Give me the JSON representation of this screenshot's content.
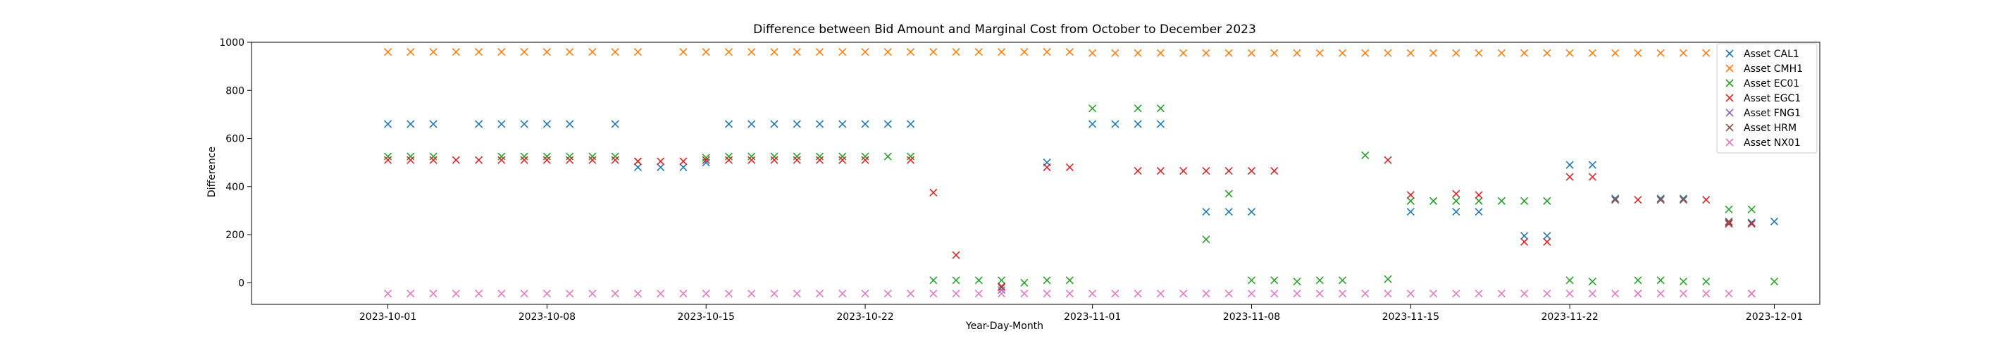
{
  "chart_data": {
    "type": "scatter",
    "title": "Difference between Bid Amount and Marginal Cost from October to December 2023",
    "xlabel": "Year-Day-Month",
    "ylabel": "Difference",
    "x_range": [
      "2023-09-25",
      "2023-12-03"
    ],
    "ylim": [
      -90,
      1000
    ],
    "y_ticks": [
      0,
      200,
      400,
      600,
      800,
      1000
    ],
    "x_ticks": [
      "2023-10-01",
      "2023-10-08",
      "2023-10-15",
      "2023-10-22",
      "2023-11-01",
      "2023-11-08",
      "2023-11-15",
      "2023-11-22",
      "2023-12-01"
    ],
    "grid": false,
    "legend_position": "top-right",
    "marker": "x",
    "series": [
      {
        "name": "Asset CAL1",
        "color": "#1f77b4",
        "points": [
          [
            "2023-10-01",
            660
          ],
          [
            "2023-10-02",
            660
          ],
          [
            "2023-10-03",
            660
          ],
          [
            "2023-10-05",
            660
          ],
          [
            "2023-10-06",
            660
          ],
          [
            "2023-10-07",
            660
          ],
          [
            "2023-10-08",
            660
          ],
          [
            "2023-10-09",
            660
          ],
          [
            "2023-10-11",
            660
          ],
          [
            "2023-10-12",
            480
          ],
          [
            "2023-10-13",
            480
          ],
          [
            "2023-10-14",
            480
          ],
          [
            "2023-10-15",
            500
          ],
          [
            "2023-10-16",
            660
          ],
          [
            "2023-10-17",
            660
          ],
          [
            "2023-10-18",
            660
          ],
          [
            "2023-10-19",
            660
          ],
          [
            "2023-10-20",
            660
          ],
          [
            "2023-10-21",
            660
          ],
          [
            "2023-10-22",
            660
          ],
          [
            "2023-10-23",
            660
          ],
          [
            "2023-10-24",
            660
          ],
          [
            "2023-10-30",
            500
          ],
          [
            "2023-11-01",
            660
          ],
          [
            "2023-11-02",
            660
          ],
          [
            "2023-11-03",
            660
          ],
          [
            "2023-11-04",
            660
          ],
          [
            "2023-11-06",
            295
          ],
          [
            "2023-11-07",
            295
          ],
          [
            "2023-11-08",
            295
          ],
          [
            "2023-11-15",
            295
          ],
          [
            "2023-11-17",
            295
          ],
          [
            "2023-11-18",
            295
          ],
          [
            "2023-11-20",
            195
          ],
          [
            "2023-11-21",
            195
          ],
          [
            "2023-11-22",
            490
          ],
          [
            "2023-11-23",
            490
          ],
          [
            "2023-11-24",
            350
          ],
          [
            "2023-11-26",
            350
          ],
          [
            "2023-11-27",
            350
          ],
          [
            "2023-11-29",
            250
          ],
          [
            "2023-11-30",
            250
          ],
          [
            "2023-12-01",
            255
          ]
        ]
      },
      {
        "name": "Asset CMH1",
        "color": "#ff7f0e",
        "points": [
          [
            "2023-10-01",
            960
          ],
          [
            "2023-10-02",
            960
          ],
          [
            "2023-10-03",
            960
          ],
          [
            "2023-10-04",
            960
          ],
          [
            "2023-10-05",
            960
          ],
          [
            "2023-10-06",
            960
          ],
          [
            "2023-10-07",
            960
          ],
          [
            "2023-10-08",
            960
          ],
          [
            "2023-10-09",
            960
          ],
          [
            "2023-10-10",
            960
          ],
          [
            "2023-10-11",
            960
          ],
          [
            "2023-10-12",
            960
          ],
          [
            "2023-10-14",
            960
          ],
          [
            "2023-10-15",
            960
          ],
          [
            "2023-10-16",
            960
          ],
          [
            "2023-10-17",
            960
          ],
          [
            "2023-10-18",
            960
          ],
          [
            "2023-10-19",
            960
          ],
          [
            "2023-10-20",
            960
          ],
          [
            "2023-10-21",
            960
          ],
          [
            "2023-10-22",
            960
          ],
          [
            "2023-10-23",
            960
          ],
          [
            "2023-10-24",
            960
          ],
          [
            "2023-10-25",
            960
          ],
          [
            "2023-10-26",
            960
          ],
          [
            "2023-10-27",
            960
          ],
          [
            "2023-10-28",
            960
          ],
          [
            "2023-10-29",
            960
          ],
          [
            "2023-10-30",
            960
          ],
          [
            "2023-10-31",
            960
          ],
          [
            "2023-11-01",
            955
          ],
          [
            "2023-11-02",
            955
          ],
          [
            "2023-11-03",
            955
          ],
          [
            "2023-11-04",
            955
          ],
          [
            "2023-11-05",
            955
          ],
          [
            "2023-11-06",
            955
          ],
          [
            "2023-11-07",
            955
          ],
          [
            "2023-11-08",
            955
          ],
          [
            "2023-11-09",
            955
          ],
          [
            "2023-11-10",
            955
          ],
          [
            "2023-11-11",
            955
          ],
          [
            "2023-11-12",
            955
          ],
          [
            "2023-11-13",
            955
          ],
          [
            "2023-11-14",
            955
          ],
          [
            "2023-11-15",
            955
          ],
          [
            "2023-11-16",
            955
          ],
          [
            "2023-11-17",
            955
          ],
          [
            "2023-11-18",
            955
          ],
          [
            "2023-11-19",
            955
          ],
          [
            "2023-11-20",
            955
          ],
          [
            "2023-11-21",
            955
          ],
          [
            "2023-11-22",
            955
          ],
          [
            "2023-11-23",
            955
          ],
          [
            "2023-11-24",
            955
          ],
          [
            "2023-11-25",
            955
          ],
          [
            "2023-11-26",
            955
          ],
          [
            "2023-11-27",
            955
          ],
          [
            "2023-11-28",
            955
          ],
          [
            "2023-11-29",
            955
          ]
        ]
      },
      {
        "name": "Asset EC01",
        "color": "#2ca02c",
        "points": [
          [
            "2023-10-01",
            525
          ],
          [
            "2023-10-02",
            525
          ],
          [
            "2023-10-03",
            525
          ],
          [
            "2023-10-06",
            525
          ],
          [
            "2023-10-07",
            525
          ],
          [
            "2023-10-08",
            525
          ],
          [
            "2023-10-09",
            525
          ],
          [
            "2023-10-10",
            525
          ],
          [
            "2023-10-11",
            525
          ],
          [
            "2023-10-12",
            505
          ],
          [
            "2023-10-15",
            520
          ],
          [
            "2023-10-16",
            525
          ],
          [
            "2023-10-17",
            525
          ],
          [
            "2023-10-18",
            525
          ],
          [
            "2023-10-19",
            525
          ],
          [
            "2023-10-20",
            525
          ],
          [
            "2023-10-21",
            525
          ],
          [
            "2023-10-22",
            525
          ],
          [
            "2023-10-23",
            525
          ],
          [
            "2023-10-24",
            525
          ],
          [
            "2023-10-25",
            10
          ],
          [
            "2023-10-26",
            10
          ],
          [
            "2023-10-27",
            10
          ],
          [
            "2023-10-28",
            10
          ],
          [
            "2023-10-29",
            0
          ],
          [
            "2023-10-30",
            10
          ],
          [
            "2023-10-31",
            10
          ],
          [
            "2023-11-01",
            725
          ],
          [
            "2023-11-03",
            725
          ],
          [
            "2023-11-04",
            725
          ],
          [
            "2023-11-06",
            180
          ],
          [
            "2023-11-07",
            370
          ],
          [
            "2023-11-08",
            10
          ],
          [
            "2023-11-09",
            10
          ],
          [
            "2023-11-10",
            5
          ],
          [
            "2023-11-11",
            10
          ],
          [
            "2023-11-12",
            10
          ],
          [
            "2023-11-13",
            530
          ],
          [
            "2023-11-14",
            15
          ],
          [
            "2023-11-15",
            340
          ],
          [
            "2023-11-16",
            340
          ],
          [
            "2023-11-17",
            340
          ],
          [
            "2023-11-18",
            340
          ],
          [
            "2023-11-19",
            340
          ],
          [
            "2023-11-20",
            340
          ],
          [
            "2023-11-21",
            340
          ],
          [
            "2023-11-22",
            10
          ],
          [
            "2023-11-23",
            5
          ],
          [
            "2023-11-25",
            10
          ],
          [
            "2023-11-26",
            10
          ],
          [
            "2023-11-27",
            5
          ],
          [
            "2023-11-28",
            5
          ],
          [
            "2023-11-29",
            305
          ],
          [
            "2023-11-30",
            305
          ],
          [
            "2023-12-01",
            5
          ]
        ]
      },
      {
        "name": "Asset EGC1",
        "color": "#d62728",
        "points": [
          [
            "2023-10-01",
            510
          ],
          [
            "2023-10-02",
            510
          ],
          [
            "2023-10-03",
            510
          ],
          [
            "2023-10-04",
            510
          ],
          [
            "2023-10-05",
            510
          ],
          [
            "2023-10-06",
            510
          ],
          [
            "2023-10-07",
            510
          ],
          [
            "2023-10-08",
            510
          ],
          [
            "2023-10-09",
            510
          ],
          [
            "2023-10-10",
            510
          ],
          [
            "2023-10-11",
            510
          ],
          [
            "2023-10-12",
            505
          ],
          [
            "2023-10-13",
            505
          ],
          [
            "2023-10-14",
            505
          ],
          [
            "2023-10-15",
            510
          ],
          [
            "2023-10-16",
            510
          ],
          [
            "2023-10-17",
            510
          ],
          [
            "2023-10-18",
            510
          ],
          [
            "2023-10-19",
            510
          ],
          [
            "2023-10-20",
            510
          ],
          [
            "2023-10-21",
            510
          ],
          [
            "2023-10-22",
            510
          ],
          [
            "2023-10-24",
            510
          ],
          [
            "2023-10-25",
            375
          ],
          [
            "2023-10-26",
            115
          ],
          [
            "2023-10-28",
            -15
          ],
          [
            "2023-10-30",
            480
          ],
          [
            "2023-10-31",
            480
          ],
          [
            "2023-11-03",
            465
          ],
          [
            "2023-11-04",
            465
          ],
          [
            "2023-11-05",
            465
          ],
          [
            "2023-11-06",
            465
          ],
          [
            "2023-11-07",
            465
          ],
          [
            "2023-11-08",
            465
          ],
          [
            "2023-11-09",
            465
          ],
          [
            "2023-11-14",
            510
          ],
          [
            "2023-11-15",
            365
          ],
          [
            "2023-11-17",
            370
          ],
          [
            "2023-11-18",
            365
          ],
          [
            "2023-11-20",
            170
          ],
          [
            "2023-11-21",
            170
          ],
          [
            "2023-11-22",
            440
          ],
          [
            "2023-11-23",
            440
          ],
          [
            "2023-11-24",
            345
          ],
          [
            "2023-11-25",
            345
          ],
          [
            "2023-11-26",
            345
          ],
          [
            "2023-11-27",
            345
          ],
          [
            "2023-11-28",
            345
          ],
          [
            "2023-11-29",
            245
          ],
          [
            "2023-11-30",
            245
          ]
        ]
      },
      {
        "name": "Asset FNG1",
        "color": "#9467bd",
        "points": [
          [
            "2023-10-28",
            -30
          ],
          [
            "2023-11-25",
            -45
          ],
          [
            "2023-11-30",
            -45
          ]
        ]
      },
      {
        "name": "Asset HRM",
        "color": "#8c564b",
        "points": [
          [
            "2023-10-28",
            -20
          ],
          [
            "2023-11-24",
            345
          ],
          [
            "2023-11-26",
            345
          ],
          [
            "2023-11-27",
            345
          ],
          [
            "2023-11-29",
            255
          ]
        ]
      },
      {
        "name": "Asset NX01",
        "color": "#e377c2",
        "points": [
          [
            "2023-10-01",
            -45
          ],
          [
            "2023-10-02",
            -45
          ],
          [
            "2023-10-03",
            -45
          ],
          [
            "2023-10-04",
            -45
          ],
          [
            "2023-10-05",
            -45
          ],
          [
            "2023-10-06",
            -45
          ],
          [
            "2023-10-07",
            -45
          ],
          [
            "2023-10-08",
            -45
          ],
          [
            "2023-10-09",
            -45
          ],
          [
            "2023-10-10",
            -45
          ],
          [
            "2023-10-11",
            -45
          ],
          [
            "2023-10-12",
            -45
          ],
          [
            "2023-10-13",
            -45
          ],
          [
            "2023-10-14",
            -45
          ],
          [
            "2023-10-15",
            -45
          ],
          [
            "2023-10-16",
            -45
          ],
          [
            "2023-10-17",
            -45
          ],
          [
            "2023-10-18",
            -45
          ],
          [
            "2023-10-19",
            -45
          ],
          [
            "2023-10-20",
            -45
          ],
          [
            "2023-10-21",
            -45
          ],
          [
            "2023-10-22",
            -45
          ],
          [
            "2023-10-23",
            -45
          ],
          [
            "2023-10-24",
            -45
          ],
          [
            "2023-10-25",
            -45
          ],
          [
            "2023-10-26",
            -45
          ],
          [
            "2023-10-27",
            -45
          ],
          [
            "2023-10-28",
            -45
          ],
          [
            "2023-10-29",
            -45
          ],
          [
            "2023-10-30",
            -45
          ],
          [
            "2023-10-31",
            -45
          ],
          [
            "2023-11-01",
            -45
          ],
          [
            "2023-11-02",
            -45
          ],
          [
            "2023-11-03",
            -45
          ],
          [
            "2023-11-04",
            -45
          ],
          [
            "2023-11-05",
            -45
          ],
          [
            "2023-11-06",
            -45
          ],
          [
            "2023-11-07",
            -45
          ],
          [
            "2023-11-08",
            -45
          ],
          [
            "2023-11-09",
            -45
          ],
          [
            "2023-11-10",
            -45
          ],
          [
            "2023-11-11",
            -45
          ],
          [
            "2023-11-12",
            -45
          ],
          [
            "2023-11-13",
            -45
          ],
          [
            "2023-11-14",
            -45
          ],
          [
            "2023-11-15",
            -45
          ],
          [
            "2023-11-16",
            -45
          ],
          [
            "2023-11-17",
            -45
          ],
          [
            "2023-11-18",
            -45
          ],
          [
            "2023-11-19",
            -45
          ],
          [
            "2023-11-20",
            -45
          ],
          [
            "2023-11-21",
            -45
          ],
          [
            "2023-11-22",
            -45
          ],
          [
            "2023-11-23",
            -45
          ],
          [
            "2023-11-24",
            -45
          ],
          [
            "2023-11-25",
            -45
          ],
          [
            "2023-11-26",
            -45
          ],
          [
            "2023-11-27",
            -45
          ],
          [
            "2023-11-28",
            -45
          ],
          [
            "2023-11-29",
            -45
          ],
          [
            "2023-11-30",
            -45
          ]
        ]
      }
    ]
  }
}
